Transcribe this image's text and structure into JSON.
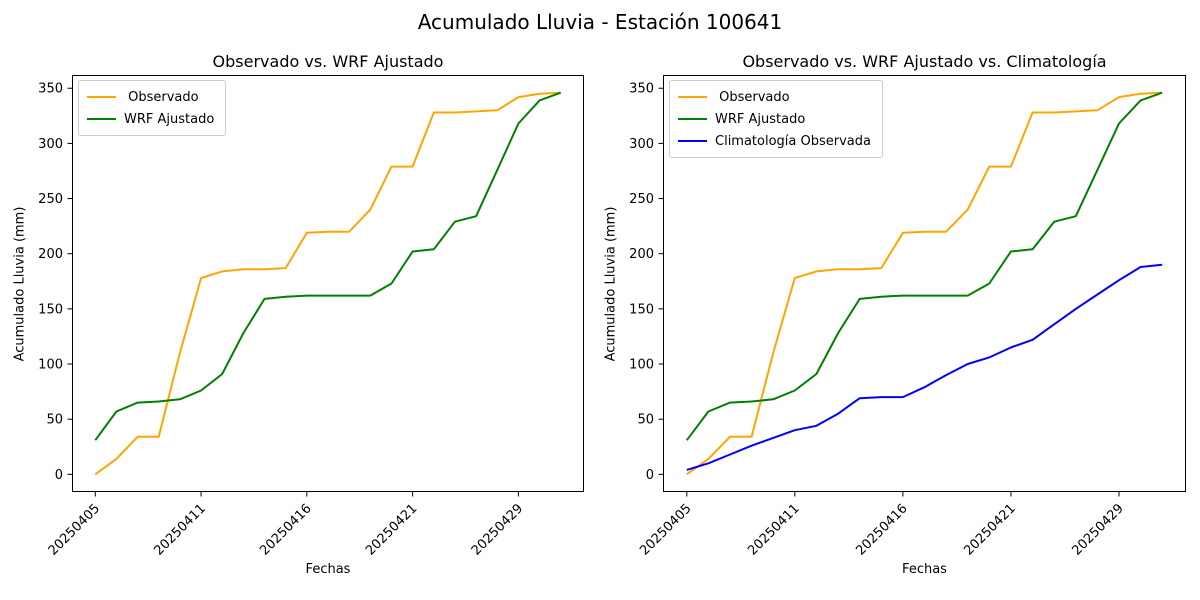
{
  "figure": {
    "title": "Acumulado Lluvia - Estación 100641",
    "background": "#ffffff",
    "text_color": "#000000"
  },
  "chart_data": [
    {
      "type": "line",
      "title": "Observado vs. WRF Ajustado",
      "xlabel": "Fechas",
      "ylabel": "Acumulado Lluvia (mm)",
      "x_tick_positions": [
        0,
        5,
        10,
        15,
        20
      ],
      "x_tick_labels": [
        "20250405",
        "20250411",
        "20250416",
        "20250421",
        "20250429"
      ],
      "x_tick_rotation": 45,
      "y_ticks": [
        0,
        50,
        100,
        150,
        200,
        250,
        300,
        350
      ],
      "xlim": [
        -1.1,
        23.1
      ],
      "ylim": [
        -16,
        362
      ],
      "grid": false,
      "legend_position": "upper left",
      "series": [
        {
          "name": " Observado",
          "color": "#FFA500",
          "values": [
            0,
            14,
            34,
            34,
            110,
            178,
            184,
            186,
            186,
            187,
            219,
            220,
            220,
            240,
            279,
            279,
            328,
            328,
            329,
            330,
            342,
            345,
            346
          ]
        },
        {
          "name": "WRF Ajustado",
          "color": "#008000",
          "values": [
            31,
            57,
            65,
            66,
            68,
            76,
            91,
            128,
            159,
            161,
            162,
            162,
            162,
            162,
            173,
            202,
            204,
            229,
            234,
            276,
            318,
            339,
            346
          ]
        }
      ]
    },
    {
      "type": "line",
      "title": "Observado vs. WRF Ajustado vs. Climatología",
      "xlabel": "Fechas",
      "ylabel": "Acumulado Lluvia (mm)",
      "x_tick_positions": [
        0,
        5,
        10,
        15,
        20
      ],
      "x_tick_labels": [
        "20250405",
        "20250411",
        "20250416",
        "20250421",
        "20250429"
      ],
      "x_tick_rotation": 45,
      "y_ticks": [
        0,
        50,
        100,
        150,
        200,
        250,
        300,
        350
      ],
      "xlim": [
        -1.1,
        23.1
      ],
      "ylim": [
        -16,
        362
      ],
      "grid": false,
      "legend_position": "upper left",
      "series": [
        {
          "name": " Observado",
          "color": "#FFA500",
          "values": [
            0,
            14,
            34,
            34,
            110,
            178,
            184,
            186,
            186,
            187,
            219,
            220,
            220,
            240,
            279,
            279,
            328,
            328,
            329,
            330,
            342,
            345,
            346
          ]
        },
        {
          "name": "WRF Ajustado",
          "color": "#008000",
          "values": [
            31,
            57,
            65,
            66,
            68,
            76,
            91,
            128,
            159,
            161,
            162,
            162,
            162,
            162,
            173,
            202,
            204,
            229,
            234,
            276,
            318,
            339,
            346
          ]
        },
        {
          "name": "Climatología Observada",
          "color": "#0000FF",
          "values": [
            4,
            10,
            18,
            26,
            33,
            40,
            44,
            55,
            69,
            70,
            70,
            79,
            90,
            100,
            106,
            115,
            122,
            136,
            150,
            163,
            176,
            188,
            190
          ]
        }
      ]
    }
  ]
}
